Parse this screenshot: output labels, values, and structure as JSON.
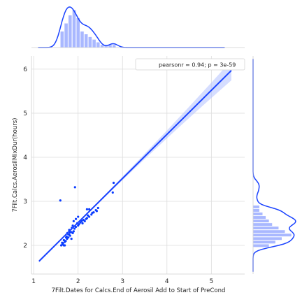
{
  "chart_data": {
    "type": "scatter",
    "subtype": "jointplot-regression",
    "title": "",
    "xlabel": "7Filt.Dates for Calcs.End of Aerosil Add to Start of PreCond",
    "ylabel": "7Filt.Calcs.AerosilMixDur(hours)",
    "xlim": [
      0.95,
      5.75
    ],
    "ylim": [
      1.35,
      6.3
    ],
    "x_ticks": [
      "1",
      "2",
      "3",
      "4",
      "5"
    ],
    "y_ticks": [
      "2",
      "3",
      "4",
      "5",
      "6"
    ],
    "grid": true,
    "legend": {
      "text": "pearsonr = 0.94; p = 3e-59",
      "placement": "top-right"
    },
    "colors": {
      "points": "#0a3cff",
      "line": "#1a43ff",
      "ci_band": "#b9c6ff",
      "hist": "#a9b8ff",
      "grid": "#dcdcdc"
    },
    "regression": {
      "slope": 1.0,
      "intercept": 0.52,
      "x_range": [
        1.12,
        5.45
      ]
    },
    "points": [
      [
        1.62,
        2.0
      ],
      [
        1.65,
        2.02
      ],
      [
        1.66,
        2.05
      ],
      [
        1.68,
        2.0
      ],
      [
        1.7,
        2.08
      ],
      [
        1.68,
        2.12
      ],
      [
        1.72,
        2.1
      ],
      [
        1.64,
        2.06
      ],
      [
        1.75,
        2.15
      ],
      [
        1.74,
        2.2
      ],
      [
        1.78,
        2.18
      ],
      [
        1.8,
        2.25
      ],
      [
        1.76,
        2.28
      ],
      [
        1.82,
        2.22
      ],
      [
        1.85,
        2.3
      ],
      [
        1.8,
        2.35
      ],
      [
        1.86,
        2.4
      ],
      [
        1.9,
        2.32
      ],
      [
        1.88,
        2.45
      ],
      [
        1.92,
        2.38
      ],
      [
        1.95,
        2.42
      ],
      [
        1.98,
        2.5
      ],
      [
        2.0,
        2.45
      ],
      [
        2.02,
        2.48
      ],
      [
        2.05,
        2.52
      ],
      [
        2.08,
        2.55
      ],
      [
        2.1,
        2.5
      ],
      [
        2.12,
        2.58
      ],
      [
        2.15,
        2.55
      ],
      [
        2.18,
        2.6
      ],
      [
        2.2,
        2.62
      ],
      [
        2.22,
        2.68
      ],
      [
        2.25,
        2.65
      ],
      [
        2.3,
        2.7
      ],
      [
        2.35,
        2.75
      ],
      [
        2.4,
        2.8
      ],
      [
        2.42,
        2.78
      ],
      [
        2.45,
        2.85
      ],
      [
        2.2,
        2.82
      ],
      [
        2.25,
        2.82
      ],
      [
        1.95,
        2.6
      ],
      [
        2.0,
        2.65
      ],
      [
        1.9,
        2.55
      ],
      [
        1.85,
        2.15
      ],
      [
        1.7,
        2.0
      ],
      [
        1.73,
        2.18
      ],
      [
        1.78,
        2.25
      ],
      [
        1.82,
        2.3
      ],
      [
        1.88,
        2.28
      ],
      [
        1.6,
        3.02
      ],
      [
        1.93,
        3.32
      ],
      [
        2.8,
        3.42
      ],
      [
        2.78,
        3.2
      ],
      [
        2.32,
        2.74
      ]
    ],
    "hist_x": {
      "bin_edges": [
        1.6,
        1.69,
        1.78,
        1.87,
        1.96,
        2.05,
        2.14,
        2.23,
        2.32,
        2.41,
        2.5,
        2.59,
        2.68,
        2.77,
        2.86
      ],
      "counts": [
        6,
        9,
        12,
        14,
        11,
        6,
        5,
        4,
        3,
        2,
        1,
        1,
        1,
        1
      ]
    },
    "hist_y": {
      "bin_edges": [
        1.95,
        2.03,
        2.11,
        2.19,
        2.27,
        2.35,
        2.43,
        2.51,
        2.59,
        2.67,
        2.75,
        2.83,
        2.91
      ],
      "counts": [
        5,
        7,
        9,
        12,
        10,
        8,
        6,
        5,
        4,
        3,
        2,
        2
      ]
    }
  }
}
